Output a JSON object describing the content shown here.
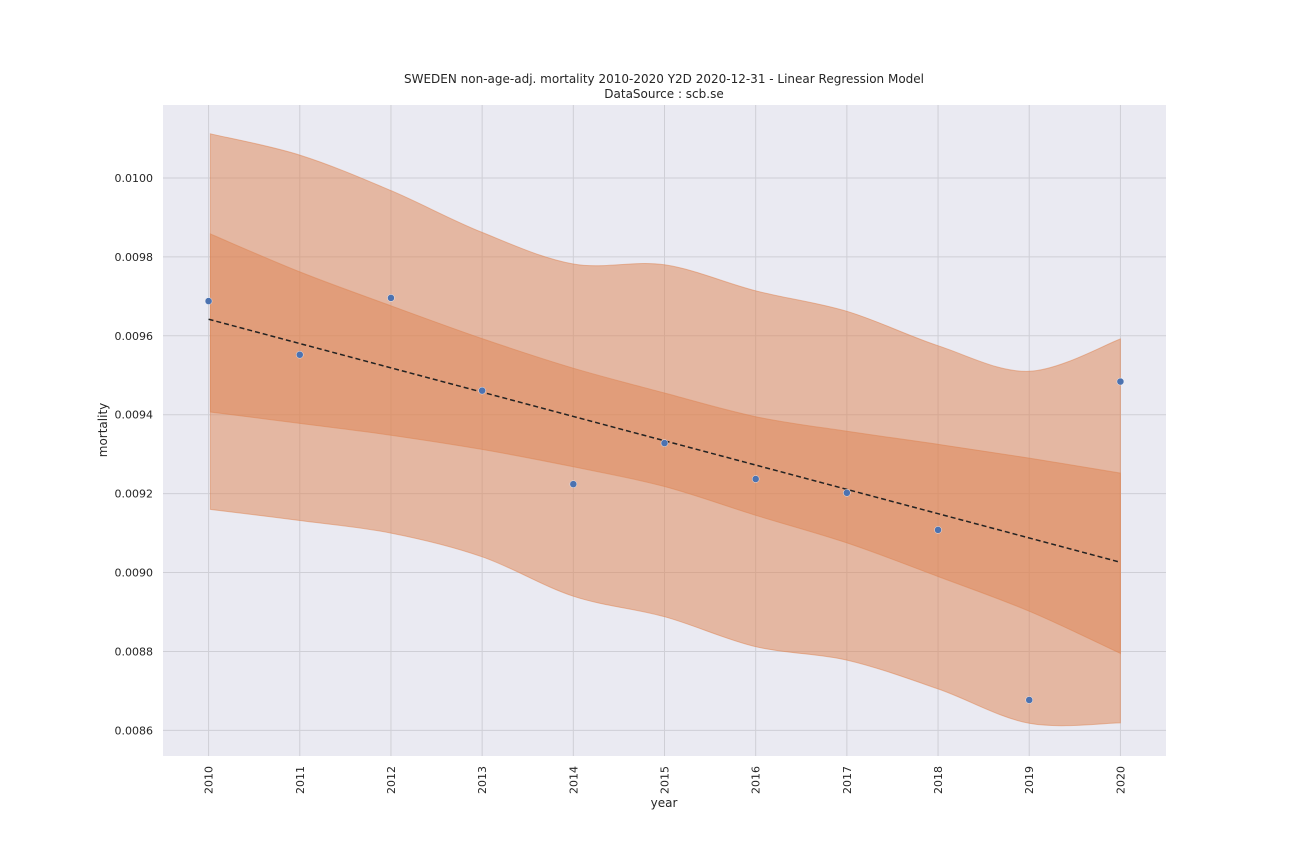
{
  "chart_data": {
    "type": "scatter",
    "title": "SWEDEN non-age-adj. mortality 2010-2020 Y2D 2020-12-31 - Linear Regression Model",
    "subtitle": "DataSource : scb.se",
    "xlabel": "year",
    "ylabel": "mortality",
    "xlim": [
      2009.5,
      2020.5
    ],
    "ylim": [
      0.008535,
      0.010185
    ],
    "grid": true,
    "x_ticks": [
      "2010",
      "2011",
      "2012",
      "2013",
      "2014",
      "2015",
      "2016",
      "2017",
      "2018",
      "2019",
      "2020"
    ],
    "y_ticks": [
      "0.0086",
      "0.0088",
      "0.0090",
      "0.0092",
      "0.0094",
      "0.0096",
      "0.0098",
      "0.0100"
    ],
    "x": [
      2010,
      2011,
      2012,
      2013,
      2014,
      2015,
      2016,
      2017,
      2018,
      2019,
      2020
    ],
    "series": [
      {
        "type": "scatter",
        "values": [
          0.009688,
          0.009552,
          0.009696,
          0.009461,
          0.009224,
          0.009328,
          0.009237,
          0.009202,
          0.009108,
          0.008677,
          0.009484
        ]
      },
      {
        "type": "line",
        "style": "dashed",
        "x": [
          2010,
          2020
        ],
        "values": [
          0.009642,
          0.009026
        ]
      }
    ],
    "bands": [
      {
        "kind": "prediction-interval",
        "x": [
          2010.02,
          2011,
          2012,
          2013,
          2014,
          2015,
          2016,
          2017,
          2018,
          2019,
          2020
        ],
        "upper": [
          0.010112,
          0.010058,
          0.009968,
          0.009862,
          0.009782,
          0.00978,
          0.009714,
          0.009662,
          0.009575,
          0.00951,
          0.009592
        ],
        "lower": [
          0.00916,
          0.009132,
          0.0091,
          0.00904,
          0.00894,
          0.008888,
          0.008812,
          0.008778,
          0.008705,
          0.008618,
          0.008619
        ]
      },
      {
        "kind": "confidence-interval",
        "x": [
          2010.02,
          2011,
          2012,
          2013,
          2014,
          2015,
          2016,
          2017,
          2018,
          2019,
          2020
        ],
        "upper": [
          0.009858,
          0.009762,
          0.009676,
          0.009593,
          0.009518,
          0.009455,
          0.009395,
          0.009358,
          0.009325,
          0.00929,
          0.009252
        ],
        "lower": [
          0.009407,
          0.009378,
          0.009348,
          0.009312,
          0.009268,
          0.009218,
          0.009145,
          0.009075,
          0.00899,
          0.008902,
          0.008795
        ]
      }
    ],
    "colors": {
      "background": "#ffffff",
      "plot_area": "#eaeaf2",
      "grid": "#cfcfd6",
      "points": "#4c72b0",
      "regression_line": "#222222",
      "band": "#dd8452"
    }
  }
}
